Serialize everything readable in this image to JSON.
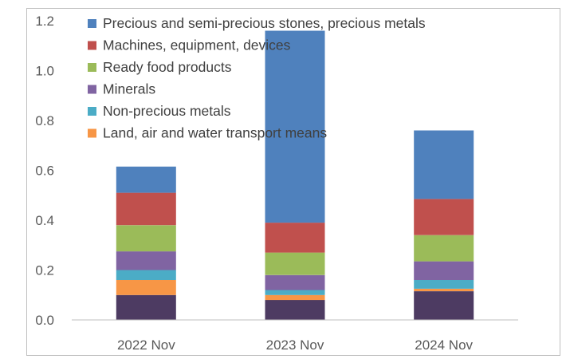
{
  "chart_data": {
    "type": "bar",
    "stacked": true,
    "categories": [
      "2022 Nov",
      "2023 Nov",
      "2024 Nov"
    ],
    "ylim": [
      0,
      1.2
    ],
    "yticks": [
      "0.0",
      "0.2",
      "0.4",
      "0.6",
      "0.8",
      "1.0",
      "1.2"
    ],
    "legend_position": "top-left",
    "grid": false,
    "series": [
      {
        "name": "",
        "color": "#4d3b62",
        "values": [
          0.1,
          0.08,
          0.115
        ],
        "show_in_legend": false
      },
      {
        "name": "Land, air and water transport means",
        "color": "#f79646",
        "values": [
          0.06,
          0.02,
          0.01
        ]
      },
      {
        "name": "Non-precious metals",
        "color": "#4bacc6",
        "values": [
          0.04,
          0.02,
          0.035
        ]
      },
      {
        "name": "Minerals",
        "color": "#8064a2",
        "values": [
          0.075,
          0.06,
          0.075
        ]
      },
      {
        "name": "Ready food products",
        "color": "#9bbb59",
        "values": [
          0.105,
          0.09,
          0.105
        ]
      },
      {
        "name": "Machines, equipment, devices",
        "color": "#c0504d",
        "values": [
          0.13,
          0.12,
          0.145
        ]
      },
      {
        "name": "Precious and semi-precious stones, precious metals",
        "color": "#4f81bd",
        "values": [
          0.105,
          0.77,
          0.275
        ]
      }
    ]
  }
}
